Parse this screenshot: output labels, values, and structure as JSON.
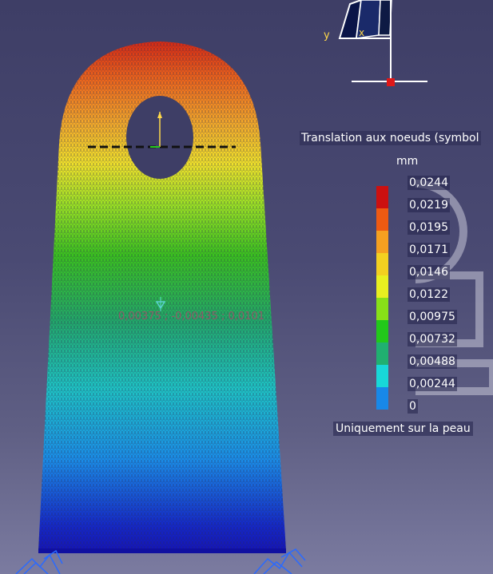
{
  "legend": {
    "title": "Translation aux noeuds (symbol",
    "unit": "mm",
    "values": [
      "0,0244",
      "0,0219",
      "0,0195",
      "0,0171",
      "0,0146",
      "0,0122",
      "0,00975",
      "0,00732",
      "0,00488",
      "0,00244",
      "0"
    ],
    "colors": [
      "#cc1010",
      "#ee5a12",
      "#f5a020",
      "#f3d020",
      "#e8f020",
      "#88e018",
      "#22c81a",
      "#20b070",
      "#18d8d8",
      "#1888e8",
      "#1010c8"
    ],
    "footer": "Uniquement sur la peau"
  },
  "probe": {
    "coordinates": "0,00375 ; -0,00435 ; 0,0101"
  },
  "compass": {
    "axis_y": "y",
    "axis_x": "x"
  }
}
